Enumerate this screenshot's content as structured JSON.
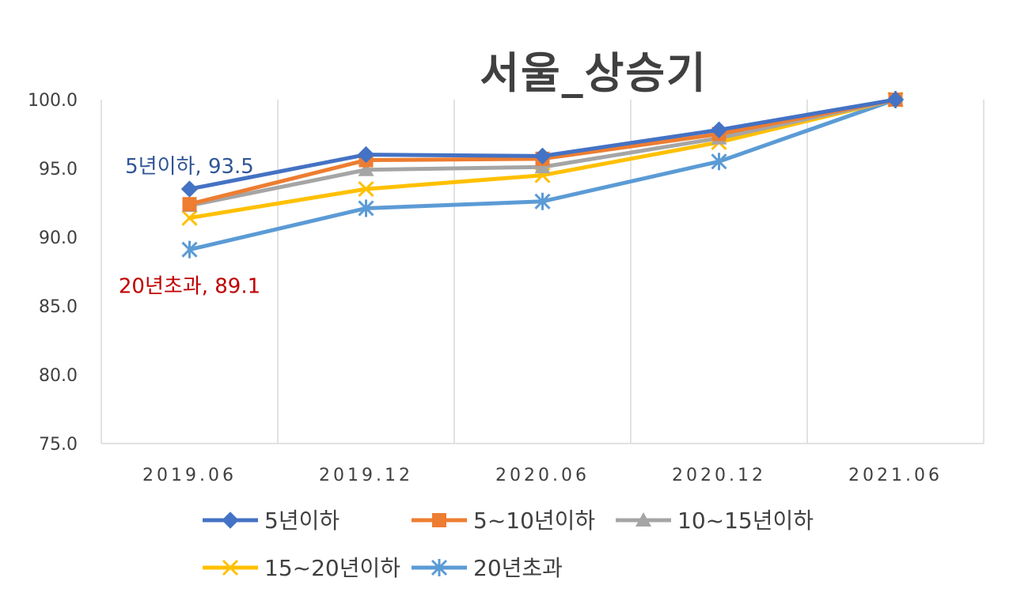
{
  "chart_data": {
    "type": "line",
    "title": "서울_상승기",
    "xlabel": "",
    "ylabel": "",
    "categories": [
      "2019.06",
      "2019.12",
      "2020.06",
      "2020.12",
      "2021.06"
    ],
    "ylim": [
      75,
      100
    ],
    "yticks": [
      "75.0",
      "80.0",
      "85.0",
      "90.0",
      "95.0",
      "100.0"
    ],
    "grid": "vertical",
    "series": [
      {
        "name": "5년이하",
        "color": "#4472C4",
        "marker": "diamond",
        "values": [
          93.5,
          96.0,
          95.9,
          97.8,
          100.0
        ]
      },
      {
        "name": "5~10년이하",
        "color": "#ED7D31",
        "marker": "square",
        "values": [
          92.4,
          95.6,
          95.7,
          97.5,
          100.0
        ]
      },
      {
        "name": "10~15년이하",
        "color": "#A5A5A5",
        "marker": "triangle",
        "values": [
          92.3,
          94.9,
          95.1,
          97.2,
          100.0
        ]
      },
      {
        "name": "15~20년이하",
        "color": "#FFC000",
        "marker": "x",
        "values": [
          91.4,
          93.5,
          94.5,
          96.9,
          100.0
        ]
      },
      {
        "name": "20년초과",
        "color": "#5B9BD5",
        "marker": "star",
        "values": [
          89.1,
          92.1,
          92.6,
          95.5,
          100.0
        ]
      }
    ],
    "annotations": [
      {
        "text": "5년이하, 93.5",
        "series": "5년이하",
        "category": "2019.06",
        "color": "#2F5597"
      },
      {
        "text": "20년초과, 89.1",
        "series": "20년초과",
        "category": "2019.06",
        "color": "#C00000"
      }
    ],
    "legend": "bottom"
  }
}
